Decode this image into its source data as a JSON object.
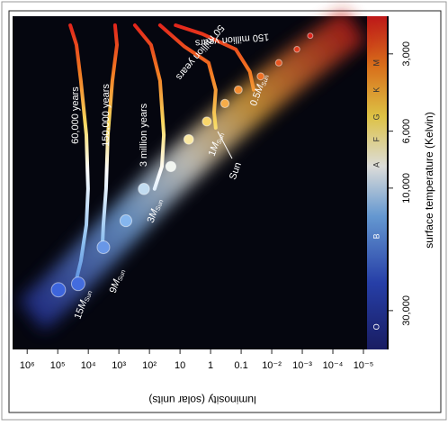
{
  "chart_data": {
    "type": "scatter",
    "x_label": "luminosity (solar units)",
    "y_label": "surface temperature (Kelvin)",
    "xscale": "log",
    "yscale": "log",
    "xlim": [
      3000000,
      1e-05
    ],
    "ylim": [
      2140,
      42500
    ],
    "xticks": [
      {
        "value": 1000000,
        "label": "10⁶"
      },
      {
        "value": 100000,
        "label": "10⁵"
      },
      {
        "value": 10000,
        "label": "10⁴"
      },
      {
        "value": 1000,
        "label": "10³"
      },
      {
        "value": 100,
        "label": "10²"
      },
      10,
      1,
      0.1,
      {
        "value": 0.01,
        "label": "10⁻²"
      },
      {
        "value": 0.001,
        "label": "10⁻³"
      },
      {
        "value": 0.0001,
        "label": "10⁻⁴"
      },
      {
        "value": 1e-05,
        "label": "10⁻⁵"
      }
    ],
    "yticks": [
      {
        "value": 3000,
        "label": "3,000"
      },
      {
        "value": 6000,
        "label": "6,000"
      },
      {
        "value": 10000,
        "label": "10,000"
      },
      {
        "value": 30000,
        "label": "30,000"
      }
    ],
    "spectral_classes": {
      "labels": [
        "O",
        "B",
        "A",
        "F",
        "G",
        "K",
        "M"
      ],
      "temperatures": [
        34700,
        15400,
        8110,
        6460,
        5280,
        4140,
        3250
      ]
    },
    "main_sequence": {
      "luminosity": [
        95000,
        21400,
        3210,
        590,
        152,
        20,
        5.2,
        1.33,
        0.34,
        0.124,
        0.023,
        0.0059,
        0.0015,
        0.00055
      ],
      "temperature": [
        24900,
        23600,
        17000,
        13400,
        10070,
        8240,
        6460,
        5500,
        4680,
        4140,
        3670,
        3250,
        2880,
        2550
      ]
    },
    "mass_unit": "M",
    "mass_subscript": "Sun",
    "tracks": [
      {
        "mass": "15",
        "luminosity": [
          39000,
          24500,
          17500,
          11600,
          10200,
          11600,
          17500,
          24500
        ],
        "temperature": [
          2320,
          2770,
          3820,
          6210,
          10070,
          13920,
          19230,
          22600
        ]
      },
      {
        "mass": "9",
        "luminosity": [
          1330,
          1160,
          1630,
          2290,
          2620,
          3210,
          3440
        ],
        "temperature": [
          2320,
          2770,
          3820,
          6210,
          10070,
          13920,
          16600
        ]
      },
      {
        "mass": "3",
        "luminosity": [
          300,
          89,
          45,
          34,
          39,
          68
        ],
        "temperature": [
          2320,
          2770,
          3820,
          6210,
          8240,
          10070
        ]
      },
      {
        "mass": "1",
        "luminosity": [
          45,
          7.2,
          1.16,
          0.68,
          0.77,
          0.68
        ],
        "temperature": [
          2320,
          2810,
          3250,
          4140,
          5070,
          5820
        ]
      },
      {
        "mass": "0.5",
        "luminosity": [
          14,
          1.87,
          0.15,
          0.052,
          0.039
        ],
        "temperature": [
          2320,
          2510,
          2880,
          3520,
          4140
        ]
      }
    ],
    "annotations": [
      "60,000 years",
      "150,000 years",
      "3 million years",
      "50 million years",
      "150 million years"
    ],
    "sun_label": "Sun"
  }
}
